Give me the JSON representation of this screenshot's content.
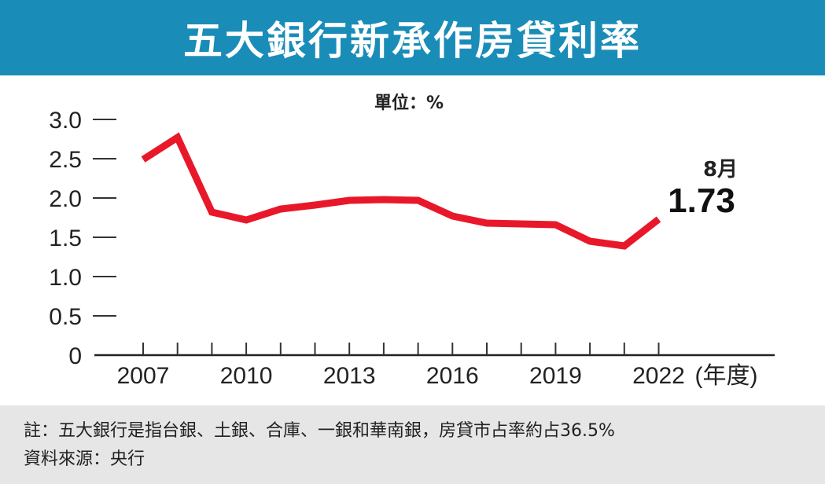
{
  "header": {
    "title": "五大銀行新承作房貸利率"
  },
  "chart_data": {
    "type": "line",
    "unit_label": "單位：%",
    "x_unit": "(年度)",
    "x": [
      2007,
      2008,
      2009,
      2010,
      2011,
      2012,
      2013,
      2014,
      2015,
      2016,
      2017,
      2018,
      2019,
      2020,
      2021,
      2022
    ],
    "series": [
      {
        "values": [
          2.49,
          2.77,
          1.82,
          1.72,
          1.86,
          1.91,
          1.97,
          1.98,
          1.97,
          1.77,
          1.68,
          1.67,
          1.66,
          1.45,
          1.39,
          1.73
        ],
        "color": "#e8182a"
      }
    ],
    "x_tick_labels": [
      "2007",
      "2010",
      "2013",
      "2016",
      "2019",
      "2022"
    ],
    "y_tick_labels": [
      "3.0",
      "2.5",
      "2.0",
      "1.5",
      "1.0",
      "0.5",
      "0"
    ],
    "ylim": [
      0,
      3.0
    ],
    "grid": false,
    "annotation": {
      "month": "8月",
      "value": "1.73"
    }
  },
  "footer": {
    "note": "註：五大銀行是指台銀、土銀、合庫、一銀和華南銀，房貸市占率約占36.5%",
    "source": "資料來源：央行"
  }
}
